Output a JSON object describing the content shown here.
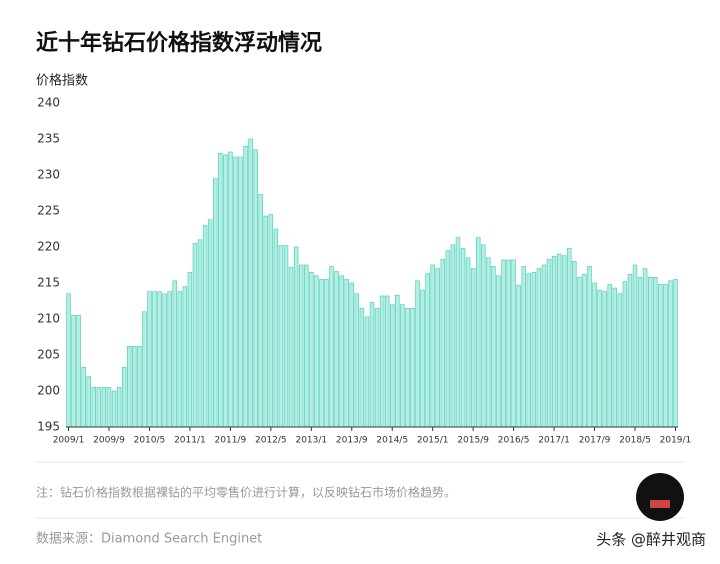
{
  "chart_data": {
    "type": "bar",
    "title": "近十年钻石价格指数浮动情况",
    "y_label": "价格指数",
    "note": "注：钻石价格指数根据裸钻的平均零售价进行计算，以反映钻石市场价格趋势。",
    "source": "数据来源：Diamond Search Enginet",
    "watermark": "头条 @醉井观商",
    "categories": [
      "2009/1",
      null,
      null,
      null,
      null,
      null,
      null,
      null,
      "2009/9",
      null,
      null,
      null,
      null,
      null,
      null,
      null,
      "2010/5",
      null,
      null,
      null,
      null,
      null,
      null,
      null,
      "2011/1",
      null,
      null,
      null,
      null,
      null,
      null,
      null,
      "2011/9",
      null,
      null,
      null,
      null,
      null,
      null,
      null,
      "2012/5",
      null,
      null,
      null,
      null,
      null,
      null,
      null,
      "2013/1",
      null,
      null,
      null,
      null,
      null,
      null,
      null,
      "2013/9",
      null,
      null,
      null,
      null,
      null,
      null,
      null,
      "2014/5",
      null,
      null,
      null,
      null,
      null,
      null,
      null,
      "2015/1",
      null,
      null,
      null,
      null,
      null,
      null,
      null,
      "2015/9",
      null,
      null,
      null,
      null,
      null,
      null,
      null,
      "2016/5",
      null,
      null,
      null,
      null,
      null,
      null,
      null,
      "2017/1",
      null,
      null,
      null,
      null,
      null,
      null,
      null,
      "2017/9",
      null,
      null,
      null,
      null,
      null,
      null,
      null,
      "2018/5",
      null,
      null,
      null,
      null,
      null,
      null,
      null,
      "2019/1"
    ],
    "values": [
      213.5,
      210.5,
      210.5,
      203.3,
      202,
      200.5,
      200.5,
      200.5,
      200.5,
      200,
      200.5,
      203.3,
      206.2,
      206.2,
      206.2,
      211,
      213.8,
      213.8,
      213.8,
      213.5,
      213.8,
      215.3,
      213.8,
      214.5,
      216.5,
      220.5,
      221,
      223,
      223.8,
      229.5,
      233,
      232.8,
      233.2,
      232.5,
      232.5,
      234,
      235,
      233.5,
      227.3,
      224.3,
      224.5,
      222.5,
      220.2,
      220.2,
      217.2,
      220,
      217.5,
      217.5,
      216.5,
      216,
      215.5,
      215.5,
      217.3,
      216.6,
      216,
      215.5,
      215,
      213.5,
      211.5,
      210.3,
      212.3,
      211.5,
      213.2,
      213.2,
      212,
      213.3,
      212,
      211.5,
      211.5,
      215.3,
      214,
      216.3,
      217.5,
      217,
      218.3,
      219.5,
      220.3,
      221.3,
      219.8,
      218.5,
      217,
      221.3,
      220.3,
      218.5,
      217.3,
      216,
      218.2,
      218.2,
      218.2,
      214.7,
      217.3,
      216.3,
      216.5,
      217,
      217.5,
      218.3,
      218.7,
      219,
      218.8,
      219.8,
      218,
      215.8,
      216.2,
      217.3,
      215,
      214,
      213.8,
      214.8,
      214.3,
      213.5,
      215.2,
      216.2,
      217.5,
      215.8,
      217,
      215.8,
      215.8,
      214.8,
      214.8,
      215.3,
      215.5
    ],
    "color": "#aef0e4",
    "edge_color": "#4fc4b2",
    "ylim": [
      195,
      240
    ],
    "yticks": [
      195,
      200,
      205,
      210,
      215,
      220,
      225,
      230,
      235,
      240
    ],
    "grid": false
  }
}
